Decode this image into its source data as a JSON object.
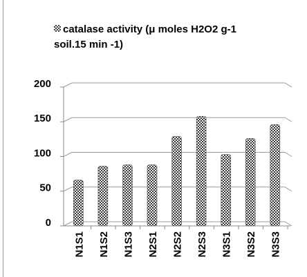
{
  "chart_data": {
    "type": "bar",
    "categories": [
      "N1S1",
      "N1S2",
      "N1S3",
      "N2S1",
      "N2S2",
      "N2S3",
      "N3S1",
      "N3S2",
      "N3S3"
    ],
    "series": [
      {
        "name": "catalase activity (μ moles H2O2 g-1 soil.15 min -1)",
        "color": "#555555",
        "values": [
          60,
          80,
          82,
          82,
          123,
          152,
          97,
          120,
          140
        ]
      }
    ],
    "ylim": [
      0,
      200
    ],
    "yticks": [
      0,
      50,
      100,
      150,
      200
    ],
    "grid": true,
    "legend": "top"
  }
}
